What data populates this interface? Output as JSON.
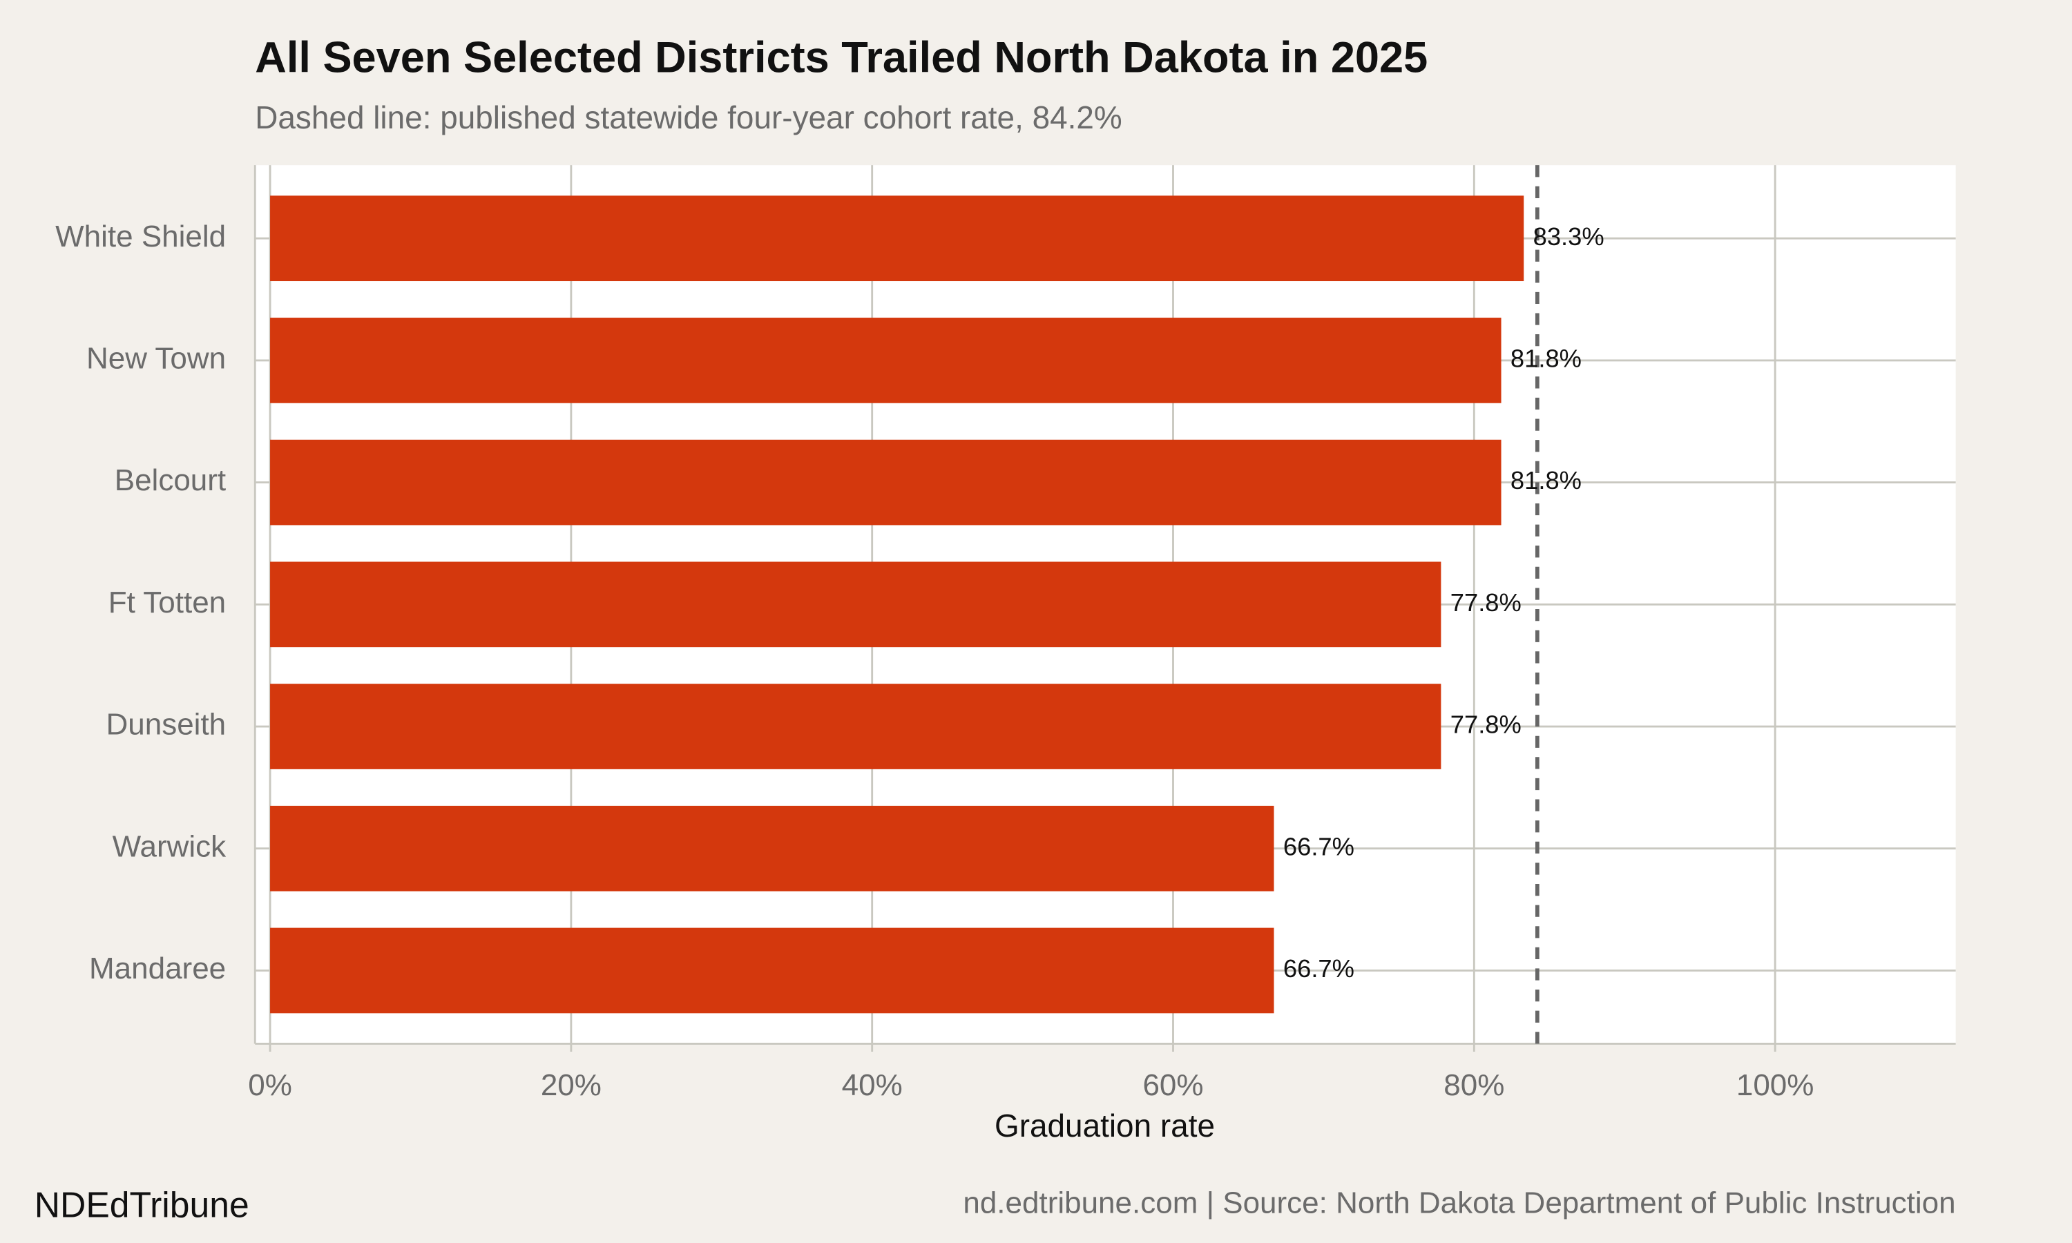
{
  "chart_data": {
    "type": "barh",
    "title": "All Seven Selected Districts Trailed North Dakota in 2025",
    "subtitle": "Dashed line: published statewide four-year cohort rate, 84.2%",
    "x_label": "Graduation rate",
    "categories": [
      "White Shield",
      "New Town",
      "Belcourt",
      "Ft Totten",
      "Dunseith",
      "Warwick",
      "Mandaree"
    ],
    "values": [
      83.3,
      81.8,
      81.8,
      77.8,
      77.8,
      66.7,
      66.7
    ],
    "value_labels": [
      "83.3%",
      "81.8%",
      "81.8%",
      "77.8%",
      "77.8%",
      "66.7%",
      "66.7%"
    ],
    "color": "#d4380d",
    "reference_line": 84.2,
    "xlim": [
      -1,
      112
    ],
    "xticks": [
      {
        "value": 0,
        "label": "0%"
      },
      {
        "value": 20,
        "label": "20%"
      },
      {
        "value": 40,
        "label": "40%"
      },
      {
        "value": 60,
        "label": "60%"
      },
      {
        "value": 80,
        "label": "80%"
      },
      {
        "value": 100,
        "label": "100%"
      }
    ],
    "grid": true,
    "footer_left": "NDEdTribune",
    "footer_right": "nd.edtribune.com | Source: North Dakota Department of Public Instruction"
  }
}
